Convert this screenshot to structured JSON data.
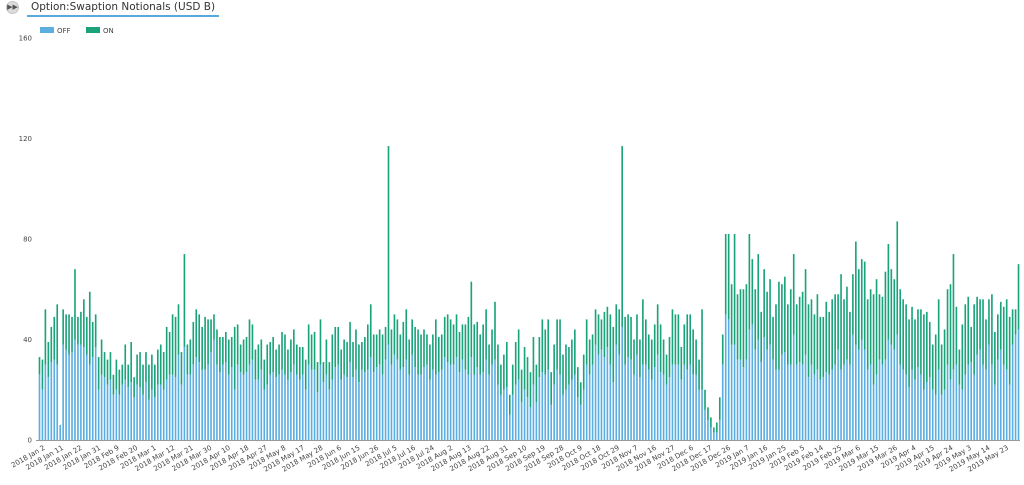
{
  "header": {
    "tab_title": "Option:Swaption Notionals (USD B)",
    "expand_icon": "double-chevron-right-icon"
  },
  "chart_data": {
    "type": "bar",
    "stacked": true,
    "title": "Option:Swaption Notionals (USD B)",
    "xlabel": "",
    "ylabel": "",
    "ylim": [
      0,
      160
    ],
    "yticks": [
      0,
      40,
      80,
      120,
      160
    ],
    "grid": false,
    "legend_placement": "top-left",
    "x_tick_labels": [
      "2018 Jan 2",
      "2018 Jan 11",
      "2018 Jan 22",
      "2018 Jan 31",
      "2018 Feb 9",
      "2018 Feb 20",
      "2018 Mar 1",
      "2018 Mar 12",
      "2018 Mar 21",
      "2018 Mar 30",
      "2018 Apr 10",
      "2018 Apr 18",
      "2018 Apr 27",
      "2018 May 8",
      "2018 May 17",
      "2018 May 28",
      "2018 Jun 6",
      "2018 Jun 15",
      "2018 Jun 26",
      "2018 Jul 5",
      "2018 Jul 16",
      "2018 Jul 24",
      "2018 Aug 2",
      "2018 Aug 13",
      "2018 Aug 22",
      "2018 Aug 31",
      "2018 Sep 10",
      "2018 Sep 19",
      "2018 Sep 28",
      "2018 Oct 9",
      "2018 Oct 18",
      "2018 Oct 29",
      "2018 Nov 7",
      "2018 Nov 16",
      "2018 Nov 27",
      "2018 Dec 6",
      "2018 Dec 17",
      "2018 Dec 26",
      "2019 Jan 7",
      "2019 Jan 16",
      "2019 Jan 25",
      "2019 Feb 5",
      "2019 Feb 14",
      "2019 Feb 25",
      "2019 Mar 6",
      "2019 Mar 15",
      "2019 Mar 26",
      "2019 Apr 4",
      "2019 Apr 15",
      "2019 Apr 24",
      "2019 May 3",
      "2019 May 14",
      "2019 May 23"
    ],
    "series": [
      {
        "name": "OFF",
        "color": "#5aaee0",
        "values": [
          26,
          20,
          30,
          25,
          31,
          32,
          30,
          6,
          38,
          36,
          34,
          35,
          40,
          38,
          38,
          37,
          34,
          30,
          33,
          37,
          20,
          26,
          25,
          22,
          24,
          18,
          20,
          18,
          22,
          24,
          21,
          23,
          17,
          22,
          21,
          18,
          23,
          16,
          20,
          17,
          22,
          22,
          20,
          24,
          26,
          26,
          25,
          34,
          22,
          37,
          26,
          26,
          30,
          33,
          31,
          28,
          28,
          30,
          35,
          40,
          30,
          27,
          30,
          31,
          26,
          29,
          20,
          30,
          27,
          26,
          27,
          30,
          32,
          24,
          24,
          28,
          20,
          22,
          26,
          27,
          25,
          26,
          28,
          26,
          24,
          27,
          30,
          26,
          24,
          26,
          20,
          30,
          28,
          28,
          19,
          30,
          23,
          26,
          20,
          24,
          29,
          30,
          24,
          26,
          25,
          31,
          25,
          28,
          23,
          28,
          27,
          28,
          33,
          27,
          29,
          30,
          26,
          32,
          38,
          30,
          34,
          32,
          28,
          29,
          32,
          26,
          34,
          29,
          26,
          26,
          29,
          30,
          24,
          28,
          26,
          27,
          28,
          33,
          31,
          30,
          30,
          33,
          27,
          32,
          28,
          26,
          33,
          26,
          29,
          26,
          27,
          32,
          26,
          30,
          32,
          22,
          18,
          20,
          21,
          10,
          18,
          22,
          24,
          15,
          20,
          17,
          13,
          22,
          15,
          25,
          27,
          26,
          28,
          14,
          22,
          28,
          26,
          18,
          20,
          22,
          24,
          26,
          17,
          14,
          20,
          30,
          26,
          30,
          38,
          34,
          36,
          33,
          37,
          30,
          23,
          38,
          34,
          45,
          30,
          33,
          32,
          26,
          34,
          25,
          30,
          30,
          28,
          24,
          29,
          34,
          27,
          26,
          22,
          25,
          30,
          30,
          30,
          24,
          30,
          28,
          30,
          26,
          26,
          20,
          20,
          12,
          8,
          5,
          3,
          3,
          8,
          30,
          50,
          48,
          38,
          38,
          32,
          32,
          29,
          32,
          44,
          46,
          36,
          40,
          31,
          41,
          36,
          38,
          32,
          28,
          28,
          34,
          35,
          30,
          30,
          42,
          30,
          31,
          30,
          34,
          25,
          30,
          26,
          28,
          24,
          25,
          27,
          26,
          28,
          30,
          36,
          28,
          30,
          32,
          30,
          42,
          38,
          36,
          40,
          36,
          28,
          30,
          22,
          26,
          32,
          30,
          32,
          40,
          38,
          36,
          42,
          30,
          28,
          26,
          21,
          28,
          24,
          29,
          26,
          20,
          23,
          25,
          20,
          18,
          28,
          18,
          20,
          30,
          24,
          28,
          30,
          22,
          20,
          26,
          30,
          31,
          26,
          34,
          36,
          30,
          28,
          38,
          30,
          22,
          32,
          36,
          30,
          28,
          22,
          38,
          42,
          44
        ]
      },
      {
        "name": "ON",
        "color": "#1aa37a",
        "values": [
          7,
          12,
          22,
          14,
          14,
          17,
          24,
          0,
          14,
          14,
          16,
          14,
          28,
          11,
          13,
          19,
          15,
          29,
          14,
          13,
          13,
          14,
          10,
          10,
          11,
          8,
          12,
          10,
          8,
          14,
          9,
          16,
          8,
          12,
          14,
          12,
          12,
          14,
          14,
          13,
          14,
          16,
          15,
          21,
          17,
          24,
          24,
          20,
          13,
          37,
          12,
          14,
          17,
          19,
          19,
          17,
          21,
          18,
          13,
          10,
          14,
          14,
          11,
          12,
          14,
          12,
          25,
          16,
          11,
          14,
          14,
          18,
          14,
          12,
          14,
          12,
          12,
          16,
          13,
          14,
          11,
          12,
          15,
          16,
          12,
          13,
          14,
          12,
          13,
          11,
          12,
          16,
          14,
          15,
          12,
          18,
          8,
          14,
          11,
          18,
          16,
          15,
          12,
          14,
          14,
          16,
          14,
          16,
          15,
          11,
          14,
          18,
          21,
          15,
          13,
          14,
          16,
          13,
          79,
          14,
          16,
          16,
          14,
          18,
          20,
          14,
          14,
          16,
          18,
          16,
          15,
          12,
          14,
          14,
          22,
          14,
          14,
          16,
          19,
          18,
          16,
          17,
          16,
          14,
          18,
          23,
          30,
          20,
          18,
          16,
          19,
          20,
          12,
          14,
          23,
          16,
          12,
          14,
          18,
          8,
          12,
          17,
          20,
          13,
          17,
          16,
          14,
          19,
          15,
          16,
          21,
          18,
          20,
          13,
          16,
          20,
          22,
          16,
          18,
          15,
          16,
          18,
          12,
          9,
          14,
          18,
          14,
          12,
          14,
          16,
          12,
          18,
          16,
          20,
          22,
          16,
          18,
          72,
          19,
          17,
          17,
          14,
          16,
          15,
          26,
          18,
          14,
          16,
          17,
          20,
          19,
          14,
          12,
          16,
          22,
          20,
          20,
          13,
          16,
          22,
          20,
          18,
          14,
          12,
          32,
          8,
          5,
          4,
          2,
          4,
          9,
          12,
          32,
          34,
          24,
          44,
          26,
          28,
          31,
          30,
          38,
          26,
          24,
          34,
          20,
          27,
          23,
          26,
          17,
          26,
          35,
          28,
          30,
          24,
          30,
          32,
          24,
          26,
          29,
          34,
          29,
          26,
          24,
          30,
          25,
          24,
          28,
          25,
          28,
          28,
          22,
          38,
          26,
          29,
          21,
          24,
          41,
          32,
          32,
          35,
          28,
          30,
          36,
          38,
          26,
          27,
          35,
          38,
          30,
          28,
          45,
          30,
          28,
          28,
          27,
          25,
          24,
          23,
          26,
          30,
          28,
          22,
          18,
          24,
          28,
          20,
          24,
          30,
          38,
          46,
          23,
          14,
          26,
          28,
          27,
          14,
          28,
          23,
          20,
          26,
          20,
          18,
          28,
          21,
          18,
          19,
          23,
          28,
          27,
          14,
          10,
          26
        ]
      }
    ]
  }
}
